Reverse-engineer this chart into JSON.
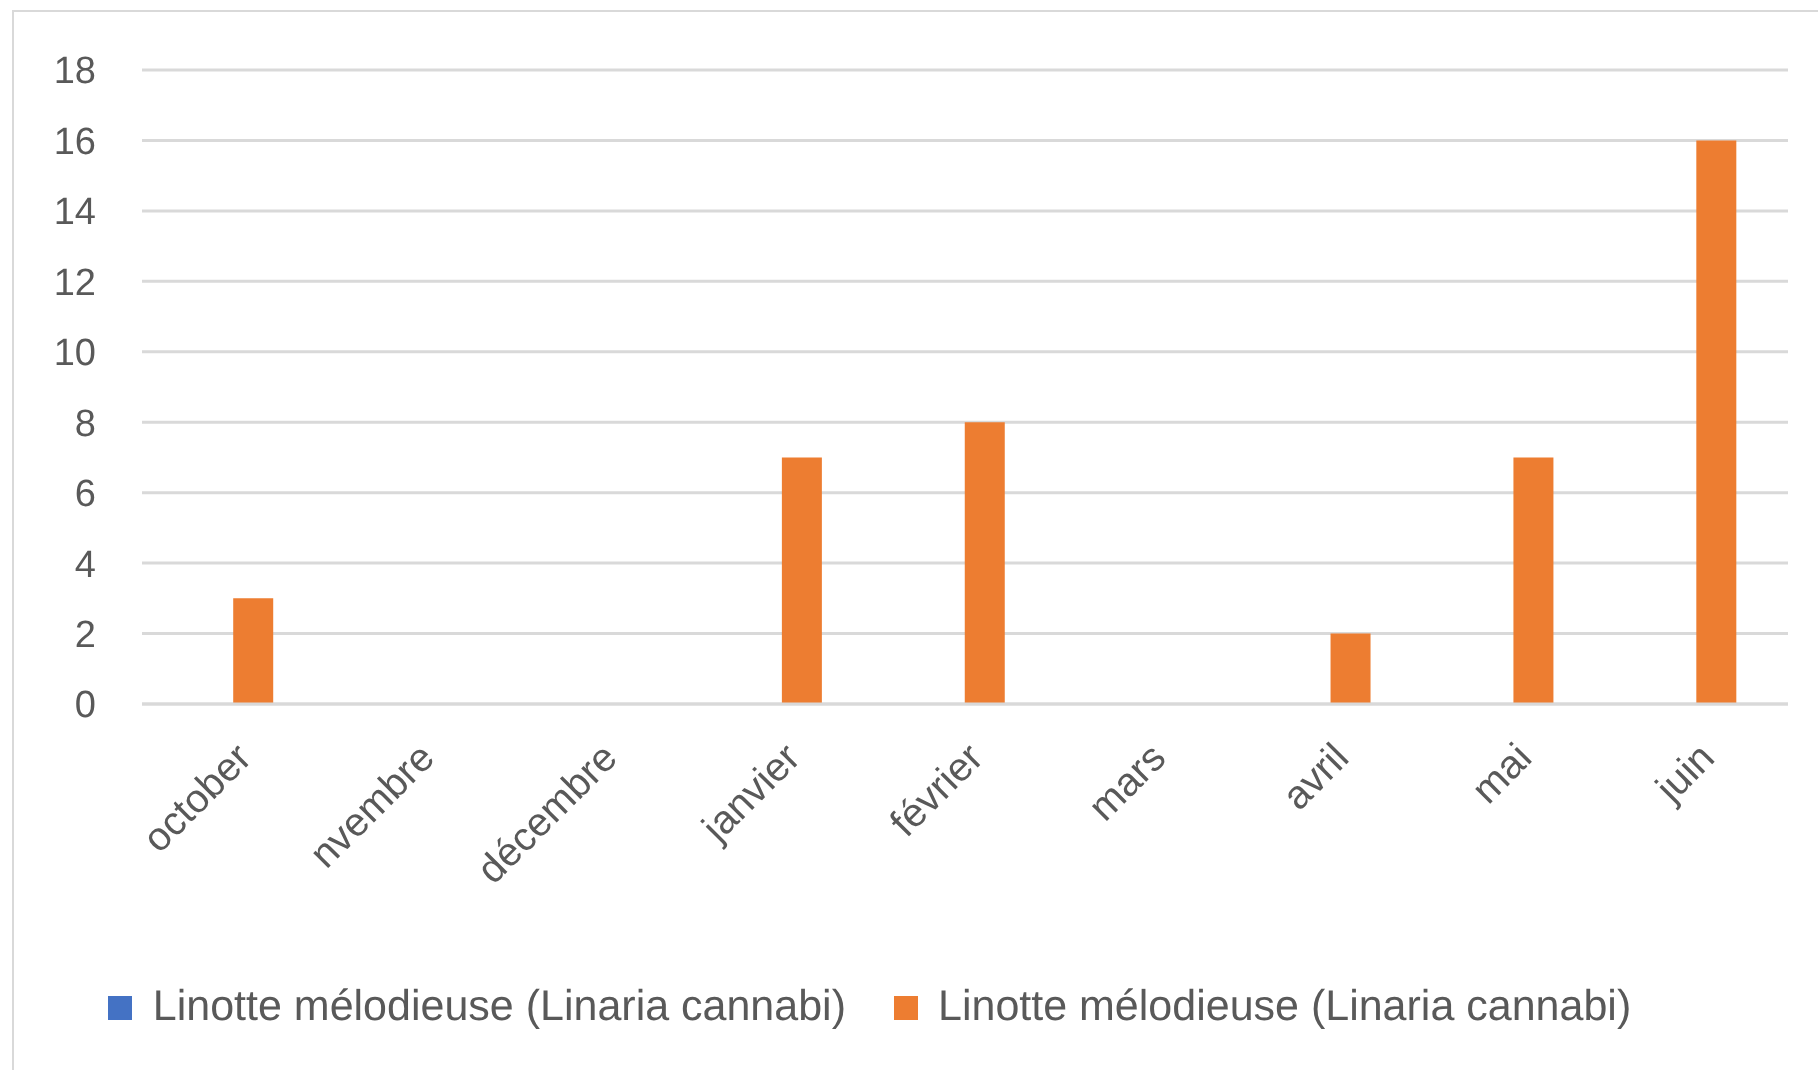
{
  "chart_data": {
    "type": "bar",
    "categories": [
      "october",
      "nvembre",
      "décembre",
      "janvier",
      "février",
      "mars",
      "avril",
      "mai",
      "juin"
    ],
    "series": [
      {
        "name": "Linotte mélodieuse (Linaria cannabi)",
        "color": "#4472c4",
        "values": [
          null,
          null,
          null,
          null,
          null,
          null,
          null,
          null,
          null
        ]
      },
      {
        "name": "Linotte mélodieuse (Linaria cannabi)",
        "color": "#ed7d31",
        "values": [
          3,
          null,
          null,
          7,
          8,
          null,
          2,
          7,
          16
        ]
      }
    ],
    "ylim": [
      0,
      18
    ],
    "yticks": [
      0,
      2,
      4,
      6,
      8,
      10,
      12,
      14,
      16,
      18
    ],
    "grid": "y",
    "legend": "bottom"
  }
}
